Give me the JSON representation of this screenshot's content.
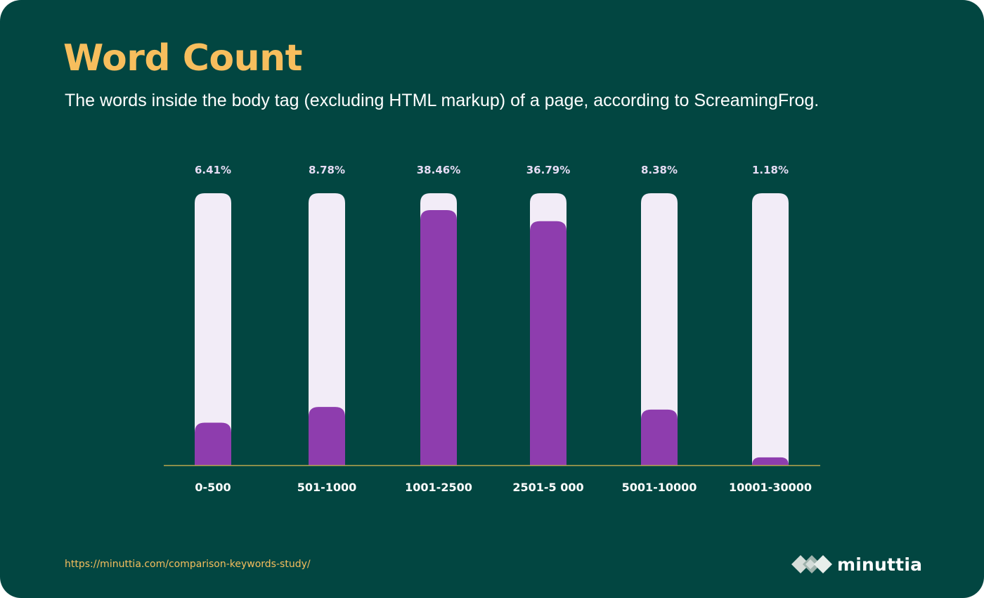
{
  "header": {
    "title": "Word Count",
    "subtitle": "The words inside the body tag (excluding HTML markup) of a page, according to ScreamingFrog."
  },
  "chart_data": {
    "type": "bar",
    "categories": [
      "0-500",
      "501-1000",
      "1001-2500",
      "2501-5 000",
      "5001-10000",
      "10001-30000"
    ],
    "values": [
      6.41,
      8.78,
      38.46,
      36.79,
      8.38,
      1.18
    ],
    "data_labels": [
      "6.41%",
      "8.78%",
      "38.46%",
      "36.79%",
      "8.38%",
      "1.18%"
    ],
    "ylim": [
      0,
      41
    ],
    "title": "",
    "xlabel": "",
    "ylabel": "",
    "grid": false,
    "colors": {
      "bar": "#8E3DAE",
      "track": "#F2ECF7",
      "baseline": "#B9A64E",
      "value_label": "#E6DCF4",
      "category_label": "#FFFFFF"
    }
  },
  "footer": {
    "source_url": "https://minuttia.com/comparison-keywords-study/",
    "brand_name": "minuttia",
    "brand_icon": "diamond-cluster-logo-icon"
  },
  "theme": {
    "background": "#024641",
    "accent": "#F7BE5D"
  }
}
